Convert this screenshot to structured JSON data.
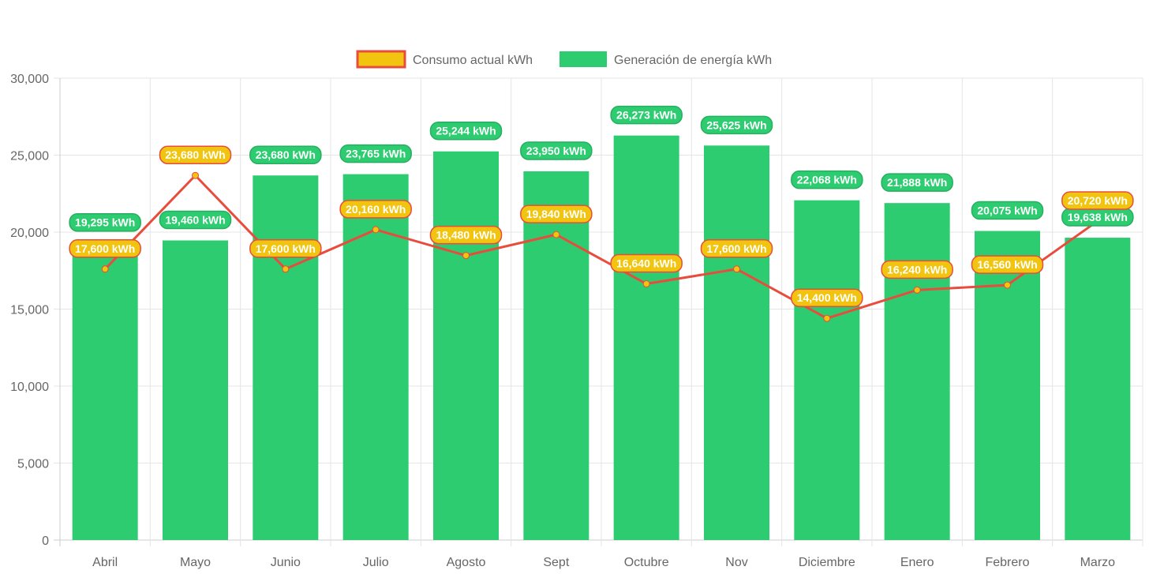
{
  "chart_data": {
    "type": "bar",
    "title": "",
    "xlabel": "",
    "ylabel": "",
    "ylim": [
      0,
      30000
    ],
    "yticks": [
      "0",
      "5,000",
      "10,000",
      "15,000",
      "20,000",
      "25,000",
      "30,000"
    ],
    "ytick_values": [
      0,
      5000,
      10000,
      15000,
      20000,
      25000,
      30000
    ],
    "grid": true,
    "legend_position": "top-center",
    "categories": [
      "Abril",
      "Mayo",
      "Junio",
      "Julio",
      "Agosto",
      "Sept",
      "Octubre",
      "Nov",
      "Diciembre",
      "Enero",
      "Febrero",
      "Marzo"
    ],
    "series": [
      {
        "name": "Consumo actual kWh",
        "type": "line",
        "color": "#e74c3c",
        "fill": "#f1c40f",
        "values": [
          17600,
          23680,
          17600,
          20160,
          18480,
          19840,
          16640,
          17600,
          14400,
          16240,
          16560,
          20720
        ],
        "labels": [
          "17,600 kWh",
          "23,680 kWh",
          "17,600 kWh",
          "20,160 kWh",
          "18,480 kWh",
          "19,840 kWh",
          "16,640 kWh",
          "17,600 kWh",
          "14,400 kWh",
          "16,240 kWh",
          "16,560 kWh",
          "20,720 kWh"
        ]
      },
      {
        "name": "Generación de energía kWh",
        "type": "bar",
        "color": "#2ecc71",
        "values": [
          19295,
          19460,
          23680,
          23765,
          25244,
          23950,
          26273,
          25625,
          22068,
          21888,
          20075,
          19638
        ],
        "labels": [
          "19,295 kWh",
          "19,460 kWh",
          "23,680 kWh",
          "23,765 kWh",
          "25,244 kWh",
          "23,950 kWh",
          "26,273 kWh",
          "25,625 kWh",
          "22,068 kWh",
          "21,888 kWh",
          "20,075 kWh",
          "19,638 kWh"
        ]
      }
    ]
  }
}
